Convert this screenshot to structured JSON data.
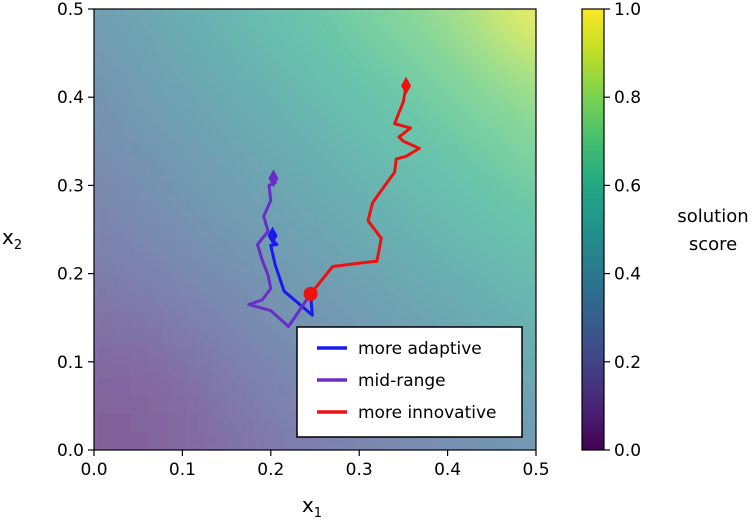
{
  "chart_data": {
    "type": "line",
    "title": "",
    "xlabel": "x",
    "xlabel_sub": "1",
    "ylabel": "x",
    "ylabel_sub": "2",
    "xlim": [
      0.0,
      0.5
    ],
    "ylim": [
      0.0,
      0.5
    ],
    "xticks": [
      "0.0",
      "0.1",
      "0.2",
      "0.3",
      "0.4",
      "0.5"
    ],
    "yticks": [
      "0.0",
      "0.1",
      "0.2",
      "0.3",
      "0.4",
      "0.5"
    ],
    "grid": false,
    "legend_position": "lower-right",
    "background": {
      "type": "heatmap",
      "description_colormap": "viridis",
      "value_range": [
        0.0,
        1.0
      ]
    },
    "colorbar": {
      "label_line1": "solution",
      "label_line2": "score",
      "ticks": [
        "0.0",
        "0.2",
        "0.4",
        "0.6",
        "0.8",
        "1.0"
      ],
      "range": [
        0.0,
        1.0
      ]
    },
    "start_point": {
      "x": 0.245,
      "y": 0.177,
      "color": "#ee1111"
    },
    "series": [
      {
        "name": "more adaptive",
        "color": "#1a1aee",
        "points": [
          [
            0.245,
            0.177
          ],
          [
            0.247,
            0.153
          ],
          [
            0.215,
            0.18
          ],
          [
            0.205,
            0.21
          ],
          [
            0.2,
            0.232
          ],
          [
            0.207,
            0.233
          ],
          [
            0.2,
            0.24
          ],
          [
            0.202,
            0.243
          ]
        ]
      },
      {
        "name": "mid-range",
        "color": "#6a2ec8",
        "points": [
          [
            0.245,
            0.177
          ],
          [
            0.22,
            0.14
          ],
          [
            0.2,
            0.158
          ],
          [
            0.175,
            0.165
          ],
          [
            0.19,
            0.17
          ],
          [
            0.2,
            0.183
          ],
          [
            0.197,
            0.198
          ],
          [
            0.19,
            0.216
          ],
          [
            0.185,
            0.233
          ],
          [
            0.197,
            0.248
          ],
          [
            0.192,
            0.265
          ],
          [
            0.2,
            0.283
          ],
          [
            0.198,
            0.3
          ],
          [
            0.205,
            0.303
          ],
          [
            0.203,
            0.308
          ]
        ]
      },
      {
        "name": "more innovative",
        "color": "#ee1111",
        "points": [
          [
            0.245,
            0.177
          ],
          [
            0.27,
            0.208
          ],
          [
            0.31,
            0.213
          ],
          [
            0.32,
            0.214
          ],
          [
            0.325,
            0.24
          ],
          [
            0.31,
            0.26
          ],
          [
            0.315,
            0.28
          ],
          [
            0.322,
            0.29
          ],
          [
            0.34,
            0.315
          ],
          [
            0.342,
            0.33
          ],
          [
            0.353,
            0.333
          ],
          [
            0.368,
            0.342
          ],
          [
            0.35,
            0.35
          ],
          [
            0.345,
            0.355
          ],
          [
            0.358,
            0.365
          ],
          [
            0.34,
            0.37
          ],
          [
            0.35,
            0.395
          ],
          [
            0.353,
            0.413
          ]
        ]
      }
    ]
  }
}
